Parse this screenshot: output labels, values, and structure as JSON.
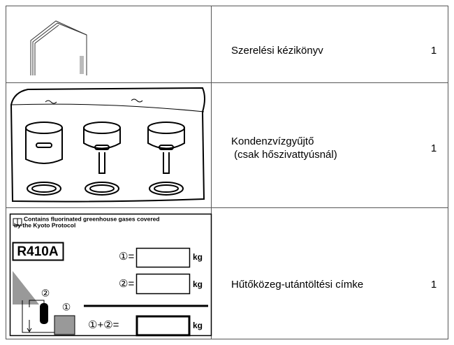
{
  "table": {
    "rows": [
      {
        "name": [
          "Szerelési kézikönyv"
        ],
        "quantity": 1
      },
      {
        "name": [
          "Kondenzvízgyűjtő",
          " (csak hőszivattyúsnál)"
        ],
        "quantity": 1
      },
      {
        "name": [
          "Hűtőközeg-utántöltési címke"
        ],
        "quantity": 1
      }
    ]
  },
  "label": {
    "notice": [
      "Contains fluorinated greenhouse gases covered",
      "by the Kyoto Protocol"
    ],
    "refrigerant": "R410A",
    "lines": [
      "①=",
      "②=",
      "①+②="
    ],
    "unit": "kg",
    "markers": [
      "②",
      "①"
    ]
  }
}
